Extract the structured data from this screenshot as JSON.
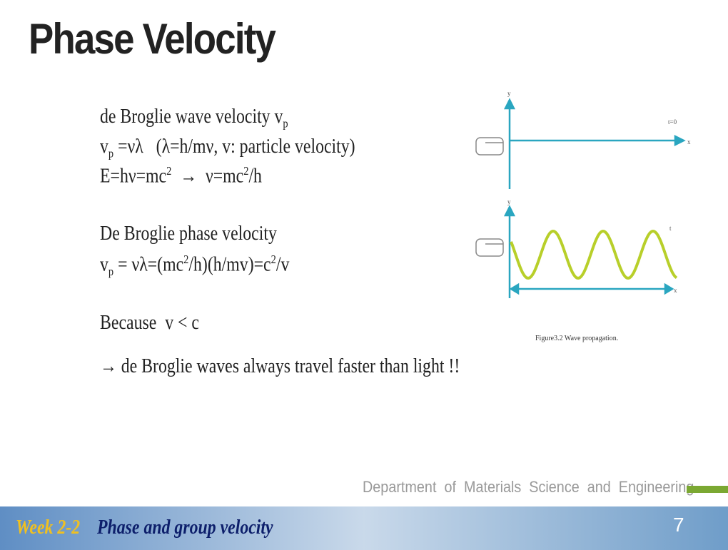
{
  "header": {
    "title": "Phase Velocity"
  },
  "body": {
    "lines": [
      [
        "de Broglie wave velocity v",
        "p"
      ],
      [
        "v",
        "p",
        " =νλ   (λ=h/mν, v: particle velocity)"
      ],
      [
        "E=hν=mc",
        "2",
        "  →  ν=mc",
        "2",
        "/h"
      ],
      [
        "De Broglie phase velocity"
      ],
      [
        "v",
        "p",
        " = νλ=(mc",
        "2",
        "/h)(h/mv)=c",
        "2",
        "/v"
      ],
      [
        "Because  v < c"
      ],
      [
        "→ de Broglie waves always travel faster than light !!"
      ]
    ]
  },
  "figure": {
    "top": {
      "y_label": "y",
      "x_label": "x",
      "t_label": "t=0"
    },
    "bottom": {
      "y_label": "y",
      "x_label": "x",
      "t_label": "t"
    },
    "caption": "Figure3.2    Wave propagation."
  },
  "footer": {
    "department": "Department  of  Materials  Science  and  Engineering",
    "week": "Week 2-2",
    "topic": "Phase and group velocity",
    "page": "7"
  }
}
